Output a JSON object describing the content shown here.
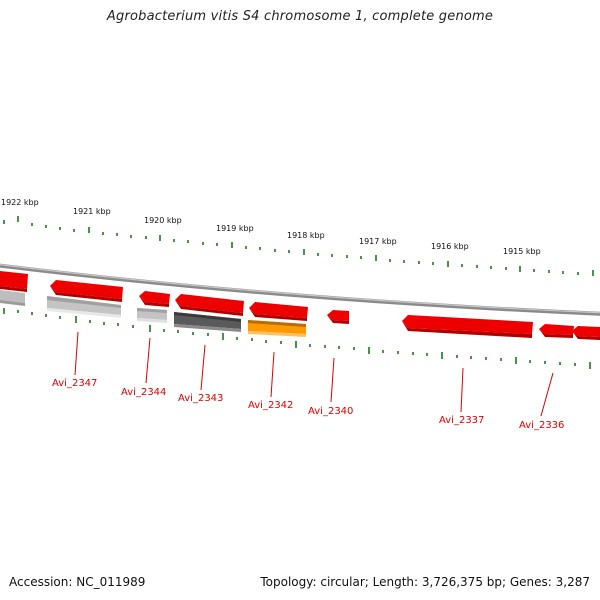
{
  "title": "Agrobacterium vitis S4 chromosome 1, complete genome",
  "accession": "Accession: NC_011989",
  "summary": "Topology: circular; Length: 3,726,375 bp; Genes: 3,287",
  "kbp_labels": [
    "1922 kbp",
    "1921 kbp",
    "1920 kbp",
    "1919 kbp",
    "1918 kbp",
    "1917 kbp",
    "1916 kbp",
    "1915 kbp"
  ],
  "gene_labels": [
    "Avi_2347",
    "Avi_2344",
    "Avi_2343",
    "Avi_2342",
    "Avi_2340",
    "Avi_2337",
    "Avi_2336"
  ],
  "colors": {
    "red": "#ee0000",
    "light_gray": "#bdbdbd",
    "dark_gray": "#555555",
    "orange": "#ff9900",
    "tick_green": "#1a7a1a",
    "label_red": "#dd0000",
    "backbone": "#888888"
  }
}
